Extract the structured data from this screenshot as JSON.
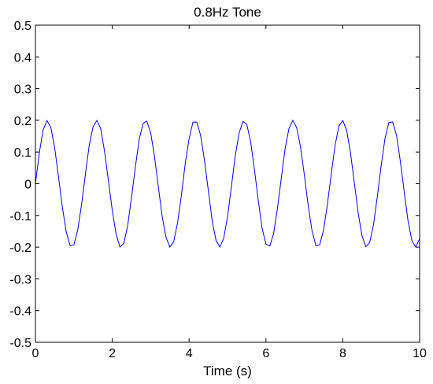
{
  "chart_data": {
    "type": "line",
    "title": "0.8Hz Tone",
    "xlabel": "Time (s)",
    "ylabel": "",
    "xlim": [
      0,
      10
    ],
    "ylim": [
      -0.5,
      0.5
    ],
    "grid": false,
    "x_ticks": [
      0,
      2,
      4,
      6,
      8,
      10
    ],
    "x_tick_labels": [
      "0",
      "2",
      "4",
      "6",
      "8",
      "10"
    ],
    "y_ticks": [
      0.5,
      0.4,
      0.3,
      0.2,
      0.1,
      0,
      -0.1,
      -0.2,
      -0.3,
      -0.4,
      -0.5
    ],
    "y_tick_labels": [
      "0.5",
      "0.4",
      "0.3",
      "0.2",
      "0.1",
      "0",
      "-0.1",
      "-0.2",
      "-0.3",
      "-0.4",
      "-0.5"
    ],
    "series": [
      {
        "color": "#0000ff",
        "x": [
          0,
          0.1,
          0.2,
          0.3,
          0.4,
          0.5,
          0.6,
          0.7,
          0.8,
          0.9,
          1.0,
          1.1,
          1.2,
          1.3,
          1.4,
          1.5,
          1.6,
          1.7,
          1.8,
          1.9,
          2.0,
          2.1,
          2.2,
          2.3,
          2.4,
          2.5,
          2.6,
          2.7,
          2.8,
          2.9,
          3.0,
          3.1,
          3.2,
          3.3,
          3.4,
          3.5,
          3.6,
          3.7,
          3.8,
          3.9,
          4.0,
          4.1,
          4.2,
          4.3,
          4.4,
          4.5,
          4.6,
          4.7,
          4.8,
          4.9,
          5.0,
          5.1,
          5.2,
          5.3,
          5.4,
          5.5,
          5.6,
          5.7,
          5.8,
          5.9,
          6.0,
          6.1,
          6.2,
          6.3,
          6.4,
          6.5,
          6.6,
          6.7,
          6.8,
          6.9,
          7.0,
          7.1,
          7.2,
          7.3,
          7.4,
          7.5,
          7.6,
          7.7,
          7.8,
          7.9,
          8.0,
          8.1,
          8.2,
          8.3,
          8.4,
          8.5,
          8.6,
          8.7,
          8.8,
          8.9,
          9.0,
          9.1,
          9.2,
          9.3,
          9.4,
          9.5,
          9.6,
          9.7,
          9.8,
          9.9,
          10.0
        ],
        "y": [
          0,
          0.0964,
          0.1691,
          0.1991,
          0.1786,
          0.1136,
          0.0226,
          -0.0727,
          -0.1507,
          -0.1943,
          -0.1928,
          -0.1465,
          -0.0663,
          0.029,
          0.1207,
          0.1797,
          0.1997,
          0.1732,
          0.1014,
          0.0091,
          -0.0836,
          -0.1591,
          -0.1994,
          -0.1882,
          -0.1333,
          -0.0442,
          0.0515,
          0.139,
          0.1898,
          0.1976,
          0.1603,
          0.0852,
          -0.0101,
          -0.1037,
          -0.1696,
          -0.1995,
          -0.1822,
          -0.123,
          -0.0362,
          0.0648,
          0.1419,
          0.1943,
          0.1944,
          0.1525,
          0.0744,
          -0.0213,
          -0.1161,
          -0.1784,
          -0.1998,
          -0.1725,
          -0.104,
          -0.0097,
          0.0866,
          0.1592,
          0.1965,
          0.1876,
          0.1338,
          0.0451,
          -0.0521,
          -0.1409,
          -0.1905,
          -0.1962,
          -0.1572,
          -0.077,
          0.0174,
          0.1116,
          0.1745,
          0.1999,
          0.1769,
          0.1161,
          0.0278,
          -0.0693,
          -0.1487,
          -0.1951,
          -0.1925,
          -0.1458,
          -0.0648,
          0.0307,
          0.1214,
          0.1822,
          0.199,
          0.1692,
          0.0984,
          0.0037,
          -0.0916,
          -0.1634,
          -0.1986,
          -0.1853,
          -0.1287,
          -0.0398,
          0.0582,
          0.1437,
          0.1931,
          0.1949,
          0.1521,
          0.0694,
          -0.0257,
          -0.1186,
          -0.1798,
          -0.1997,
          -0.1732
        ]
      }
    ]
  }
}
